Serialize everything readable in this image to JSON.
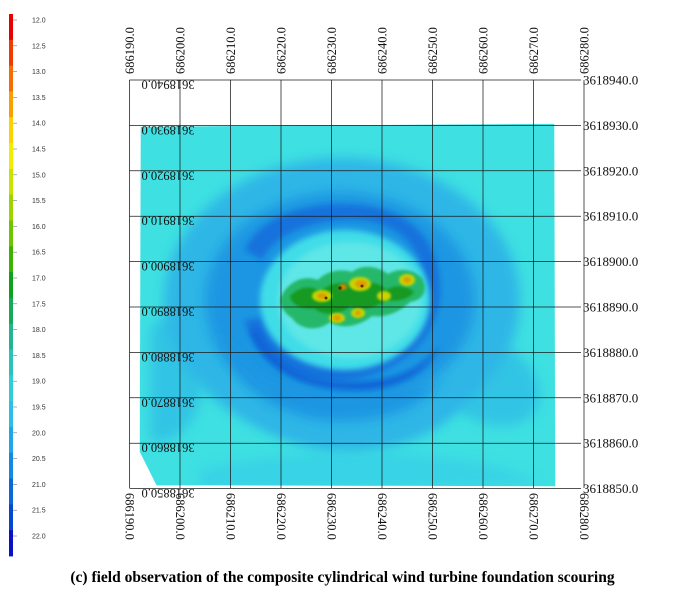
{
  "legend": {
    "labels": [
      "12.0",
      "12.5",
      "13.0",
      "13.5",
      "14.0",
      "14.5",
      "15.0",
      "15.5",
      "16.0",
      "16.5",
      "17.0",
      "17.5",
      "18.0",
      "18.5",
      "19.0",
      "19.5",
      "20.0",
      "20.5",
      "21.0",
      "21.5",
      "22.0"
    ],
    "colors": [
      "#e60000",
      "#ef3a00",
      "#f56d00",
      "#f9a000",
      "#fbd200",
      "#f2ec00",
      "#c9e200",
      "#9dd400",
      "#6fc400",
      "#3db300",
      "#10a11c",
      "#18a85a",
      "#22b590",
      "#2ac2bb",
      "#30ccd8",
      "#2cbde8",
      "#1fa6e8",
      "#1488e2",
      "#0b68d8",
      "#0548cf",
      "#0a10c8"
    ]
  },
  "x_axis_labels": [
    "686190.0",
    "686200.0",
    "686210.0",
    "686220.0",
    "686230.0",
    "686240.0",
    "686250.0",
    "686260.0",
    "686270.0",
    "686280.0"
  ],
  "y_axis_labels": [
    "3618940.0",
    "3618930.0",
    "3618920.0",
    "3618910.0",
    "3618900.0",
    "3618890.0",
    "3618880.0",
    "3618870.0",
    "3618860.0",
    "3618850.0"
  ],
  "caption": "(c) field observation of the composite cylindrical wind turbine foundation scouring"
}
